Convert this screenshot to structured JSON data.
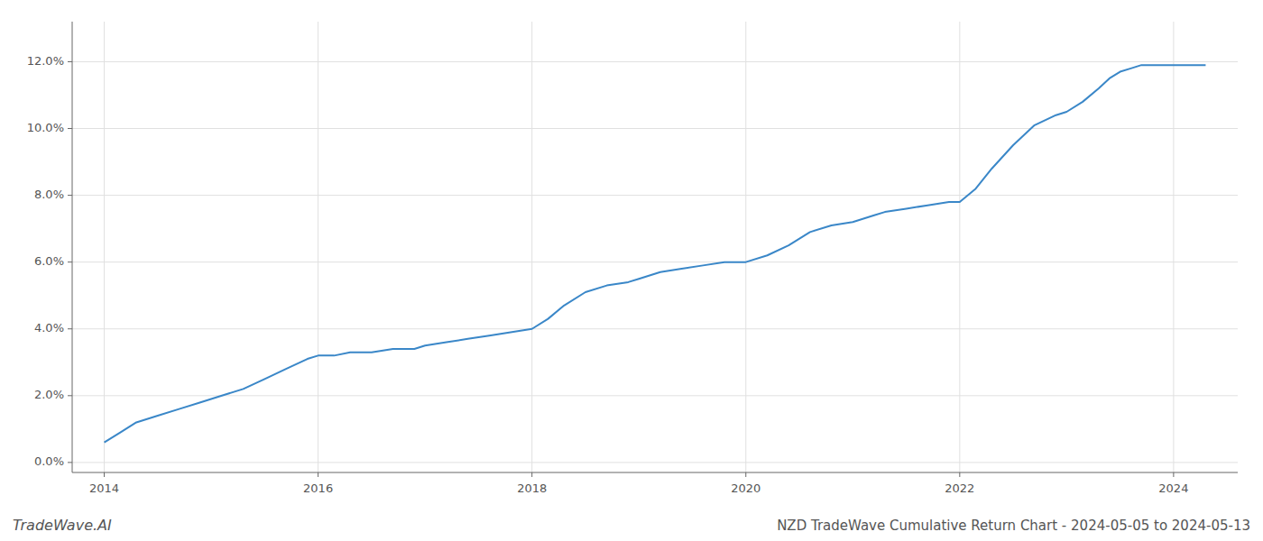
{
  "chart_data": {
    "type": "line",
    "title": "NZD TradeWave Cumulative Return Chart - 2024-05-05 to 2024-05-13",
    "annotations": [
      "TradeWave.AI"
    ],
    "color": "#3a87c8",
    "grid": true,
    "xlim": [
      2013.7,
      2024.6
    ],
    "ylim": [
      -0.003,
      0.132
    ],
    "xticks": [
      2014,
      2016,
      2018,
      2020,
      2022,
      2024
    ],
    "yticks": [
      {
        "value": 0.0,
        "label": "0.0%"
      },
      {
        "value": 0.02,
        "label": "2.0%"
      },
      {
        "value": 0.04,
        "label": "4.0%"
      },
      {
        "value": 0.06,
        "label": "6.0%"
      },
      {
        "value": 0.08,
        "label": "8.0%"
      },
      {
        "value": 0.1,
        "label": "10.0%"
      },
      {
        "value": 0.12,
        "label": "12.0%"
      }
    ],
    "x": [
      2014.0,
      2014.15,
      2014.3,
      2014.5,
      2014.7,
      2014.9,
      2015.1,
      2015.3,
      2015.5,
      2015.7,
      2015.9,
      2016.0,
      2016.15,
      2016.3,
      2016.5,
      2016.7,
      2016.9,
      2017.0,
      2017.2,
      2017.4,
      2017.6,
      2017.8,
      2018.0,
      2018.15,
      2018.3,
      2018.5,
      2018.7,
      2018.9,
      2019.0,
      2019.2,
      2019.4,
      2019.6,
      2019.8,
      2020.0,
      2020.2,
      2020.4,
      2020.6,
      2020.8,
      2021.0,
      2021.1,
      2021.2,
      2021.3,
      2021.5,
      2021.7,
      2021.9,
      2022.0,
      2022.15,
      2022.3,
      2022.5,
      2022.7,
      2022.9,
      2023.0,
      2023.15,
      2023.3,
      2023.4,
      2023.5,
      2023.6,
      2023.7,
      2023.8,
      2023.9,
      2024.0,
      2024.1,
      2024.3
    ],
    "values": [
      0.006,
      0.009,
      0.012,
      0.014,
      0.016,
      0.018,
      0.02,
      0.022,
      0.025,
      0.028,
      0.031,
      0.032,
      0.032,
      0.033,
      0.033,
      0.034,
      0.034,
      0.035,
      0.036,
      0.037,
      0.038,
      0.039,
      0.04,
      0.043,
      0.047,
      0.051,
      0.053,
      0.054,
      0.055,
      0.057,
      0.058,
      0.059,
      0.06,
      0.06,
      0.062,
      0.065,
      0.069,
      0.071,
      0.072,
      0.073,
      0.074,
      0.075,
      0.076,
      0.077,
      0.078,
      0.078,
      0.082,
      0.088,
      0.095,
      0.101,
      0.104,
      0.105,
      0.108,
      0.112,
      0.115,
      0.117,
      0.118,
      0.119,
      0.119,
      0.119,
      0.119,
      0.119,
      0.119
    ]
  }
}
